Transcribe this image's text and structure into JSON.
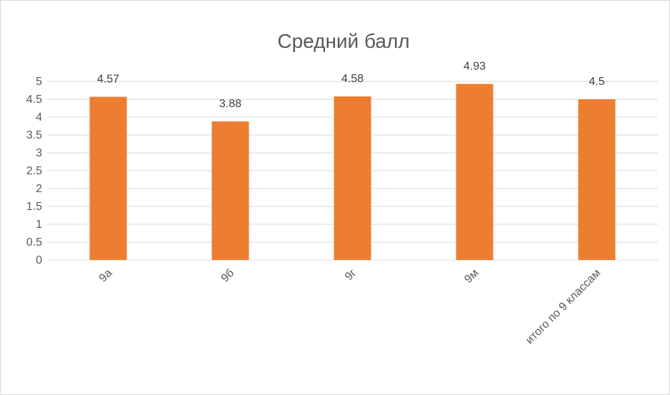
{
  "chart_data": {
    "type": "bar",
    "title": "Средний балл",
    "categories": [
      "9а",
      "9б",
      "9г",
      "9м",
      "итого по 9 классам"
    ],
    "values": [
      4.57,
      3.88,
      4.58,
      4.93,
      4.5
    ],
    "value_labels": [
      "4.57",
      "3.88",
      "4.58",
      "4.93",
      "4.5"
    ],
    "ylim": [
      0,
      5
    ],
    "yticks": [
      "0",
      "0.5",
      "1",
      "1.5",
      "2",
      "2.5",
      "3",
      "3.5",
      "4",
      "4.5",
      "5"
    ],
    "xlabel": "",
    "ylabel": "",
    "grid": true,
    "legend": "none",
    "bar_color": "#ED7D31",
    "grid_color": "#D9D9D9",
    "text_color": "#595959"
  }
}
